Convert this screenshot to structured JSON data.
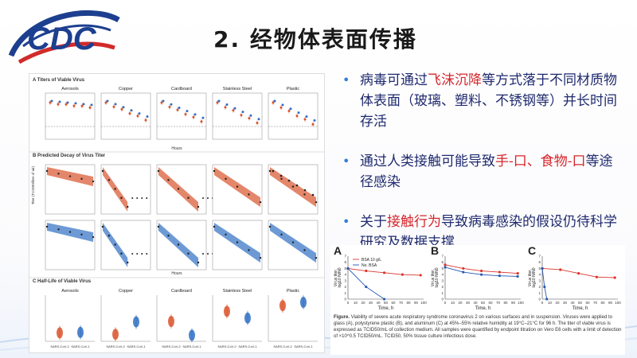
{
  "slide": {
    "title": "2. 经物体表面传播"
  },
  "logo": {
    "text": "CDC",
    "colors": {
      "blue": "#1d3f8f",
      "red": "#d22a2a"
    }
  },
  "bullets": [
    {
      "pre": "病毒可通过",
      "hl": "飞沫沉降",
      "post": "等方式落于不同材质物体表面（玻璃、塑料、不锈钢等）并长时间存活"
    },
    {
      "pre": "通过人类接触可能导致",
      "hl": "手-口、食物-口",
      "post": "等途径感染"
    },
    {
      "pre": "关于",
      "hl": "接触行为",
      "post": "导致病毒感染的假设仍待科学研究及数据支撑"
    }
  ],
  "left_figure": {
    "section_a": "A  Titers of Viable Virus",
    "section_b": "B  Predicted Decay of Virus Titer",
    "section_c": "C  Half-Life of Viable Virus",
    "panels": [
      "Aerosols",
      "Copper",
      "Cardboard",
      "Stainless Steel",
      "Plastic"
    ],
    "x_label": "Hours",
    "y_label_a": "Titer (TCID50/liter of air)",
    "y_label_c": "Half-Life (hr)",
    "c_xlabels": [
      "SARS-CoV-2",
      "SARS-CoV-1"
    ],
    "colors": {
      "cov2": "#d9532b",
      "cov1": "#2f6fc3"
    }
  },
  "right_figure": {
    "panel_letters": [
      "A",
      "B",
      "C"
    ],
    "legend": [
      "BSA 10 g/L",
      "No. BSA"
    ],
    "y_label_1": "Virus titer,",
    "y_label_2": "log10 N/N0",
    "x_label": "Time, h",
    "x_ticks": [
      "0",
      "10",
      "20",
      "30",
      "40",
      "50",
      "60",
      "70",
      "80",
      "90",
      "100"
    ],
    "y_ticks": [
      "7",
      "6",
      "5",
      "4",
      "3",
      "2",
      "1",
      "0"
    ],
    "caption_bold": "Figure.",
    "caption": "Viability of severe acute respiratory syndrome coronavirus 2 on various surfaces and in suspension. Viruses were applied to glass (A), polystyrene plastic (B), and aluminum (C) at 45%–55% relative humidity at 19°C–21°C for 96 h. The titer of viable virus is expressed as TCID50/mL of collection medium. All samples were quantified by endpoint titration on Vero E6 cells with a limit of detection of ×10^0.5 TCID50/mL. TCID50, 50% tissue culture infectious dose.",
    "colors": {
      "bsa": "#d9362e",
      "nobsa": "#2456b0"
    }
  },
  "chart_data": [
    {
      "type": "line",
      "title": "A",
      "xlabel": "Time, h",
      "ylabel": "Virus titer, log10 N/N0",
      "xlim": [
        0,
        100
      ],
      "ylim": [
        0,
        7
      ],
      "series": [
        {
          "name": "BSA 10 g/L",
          "x": [
            0,
            24,
            48,
            72,
            96
          ],
          "y": [
            5.0,
            4.6,
            4.3,
            4.0,
            3.9
          ]
        },
        {
          "name": "No. BSA",
          "x": [
            0,
            24,
            48
          ],
          "y": [
            5.0,
            2.0,
            0
          ]
        }
      ]
    },
    {
      "type": "line",
      "title": "B",
      "xlabel": "Time, h",
      "ylabel": "Virus titer, log10 N/N0",
      "xlim": [
        0,
        100
      ],
      "ylim": [
        0,
        7
      ],
      "series": [
        {
          "name": "BSA 10 g/L",
          "x": [
            0,
            24,
            48,
            72,
            96
          ],
          "y": [
            5.6,
            5.0,
            4.6,
            4.4,
            4.2
          ]
        },
        {
          "name": "No. BSA",
          "x": [
            0,
            24,
            48,
            72,
            96
          ],
          "y": [
            5.2,
            4.4,
            4.0,
            3.8,
            3.7
          ]
        }
      ]
    },
    {
      "type": "line",
      "title": "C",
      "xlabel": "Time, h",
      "ylabel": "Virus titer, log10 N/N0",
      "xlim": [
        0,
        100
      ],
      "ylim": [
        0,
        7
      ],
      "series": [
        {
          "name": "BSA 10 g/L",
          "x": [
            0,
            24,
            48,
            72,
            96
          ],
          "y": [
            5.0,
            4.8,
            4.2,
            3.6,
            3.5
          ]
        },
        {
          "name": "No. BSA",
          "x": [
            0,
            3,
            6
          ],
          "y": [
            5.0,
            2.0,
            0
          ]
        }
      ]
    }
  ]
}
